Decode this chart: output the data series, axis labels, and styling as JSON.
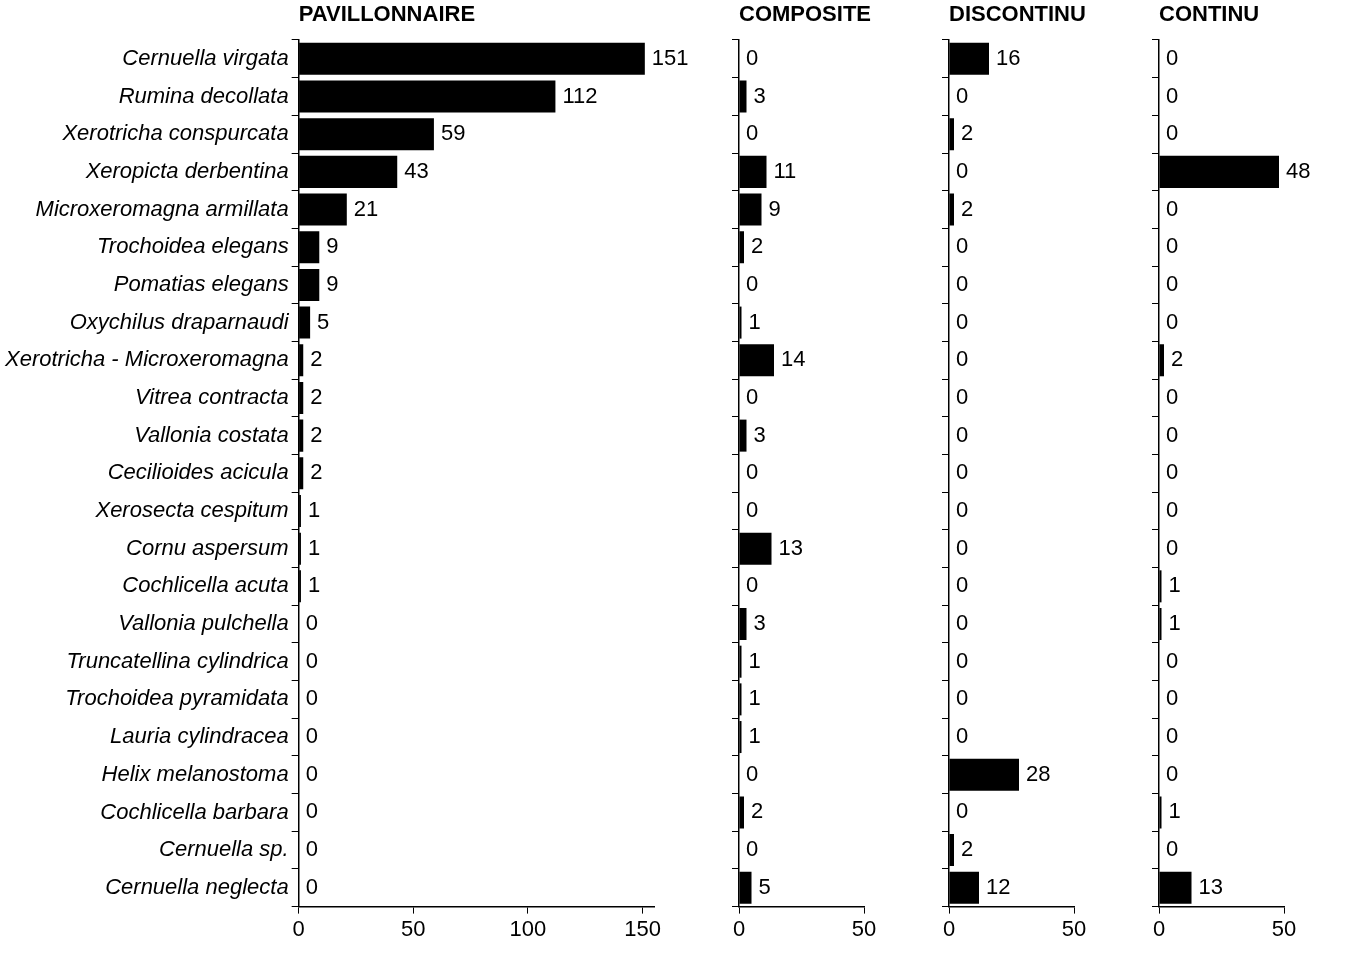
{
  "chart_data": [
    {
      "type": "bar",
      "orientation": "horizontal",
      "title": "PAVILLONNAIRE",
      "color": "#000000",
      "data_labels": true,
      "xlim": [
        0,
        155
      ],
      "xticks": [
        0,
        50,
        100,
        150
      ],
      "categories": [
        "Cernuella virgata",
        "Rumina decollata",
        "Xerotricha conspurcata",
        "Xeropicta derbentina",
        "Microxeromagna armillata",
        "Trochoidea elegans",
        "Pomatias elegans",
        "Oxychilus draparnaudi",
        "Xerotricha - Microxeromagna",
        "Vitrea contracta",
        "Vallonia costata",
        "Cecilioides acicula",
        "Xerosecta cespitum",
        "Cornu aspersum",
        "Cochlicella acuta",
        "Vallonia pulchella",
        "Truncatellina cylindrica",
        "Trochoidea pyramidata",
        "Lauria cylindracea",
        "Helix melanostoma",
        "Cochlicella barbara",
        "Cernuella sp.",
        "Cernuella neglecta"
      ],
      "values": [
        151,
        112,
        59,
        43,
        21,
        9,
        9,
        5,
        2,
        2,
        2,
        2,
        1,
        1,
        1,
        0,
        0,
        0,
        0,
        0,
        0,
        0,
        0
      ]
    },
    {
      "type": "bar",
      "orientation": "horizontal",
      "title": "COMPOSITE",
      "color": "#000000",
      "data_labels": true,
      "tick_labels": "x",
      "xlim": [
        0,
        50
      ],
      "xticks": [
        0,
        50
      ],
      "categories": [
        null,
        null,
        null,
        null,
        null,
        null,
        null,
        null,
        null,
        null,
        null,
        null,
        null,
        null,
        null,
        null,
        null,
        null,
        null,
        null,
        null,
        null,
        null
      ],
      "values": [
        0,
        3,
        0,
        11,
        9,
        2,
        0,
        1,
        14,
        0,
        3,
        0,
        0,
        13,
        0,
        3,
        1,
        1,
        1,
        0,
        2,
        0,
        5
      ]
    },
    {
      "type": "bar",
      "orientation": "horizontal",
      "title": "DISCONTINU",
      "color": "#000000",
      "data_labels": true,
      "tick_labels": "x",
      "xlim": [
        0,
        50
      ],
      "xticks": [
        0,
        50
      ],
      "categories": [
        null,
        null,
        null,
        null,
        null,
        null,
        null,
        null,
        null,
        null,
        null,
        null,
        null,
        null,
        null,
        null,
        null,
        null,
        null,
        null,
        null,
        null,
        null
      ],
      "values": [
        16,
        0,
        2,
        0,
        2,
        0,
        0,
        0,
        0,
        0,
        0,
        0,
        0,
        0,
        0,
        0,
        0,
        0,
        0,
        28,
        0,
        2,
        12
      ]
    },
    {
      "type": "bar",
      "orientation": "horizontal",
      "title": "CONTINU",
      "color": "#000000",
      "data_labels": true,
      "tick_labels": "x",
      "xlim": [
        0,
        50
      ],
      "xticks": [
        0,
        50
      ],
      "categories": [
        null,
        null,
        null,
        null,
        null,
        null,
        null,
        null,
        null,
        null,
        null,
        null,
        null,
        null,
        null,
        null,
        null,
        null,
        null,
        null,
        null,
        null,
        null
      ],
      "values": [
        0,
        0,
        0,
        48,
        0,
        0,
        0,
        0,
        2,
        0,
        0,
        0,
        0,
        0,
        1,
        1,
        0,
        0,
        0,
        0,
        1,
        0,
        13
      ]
    }
  ]
}
